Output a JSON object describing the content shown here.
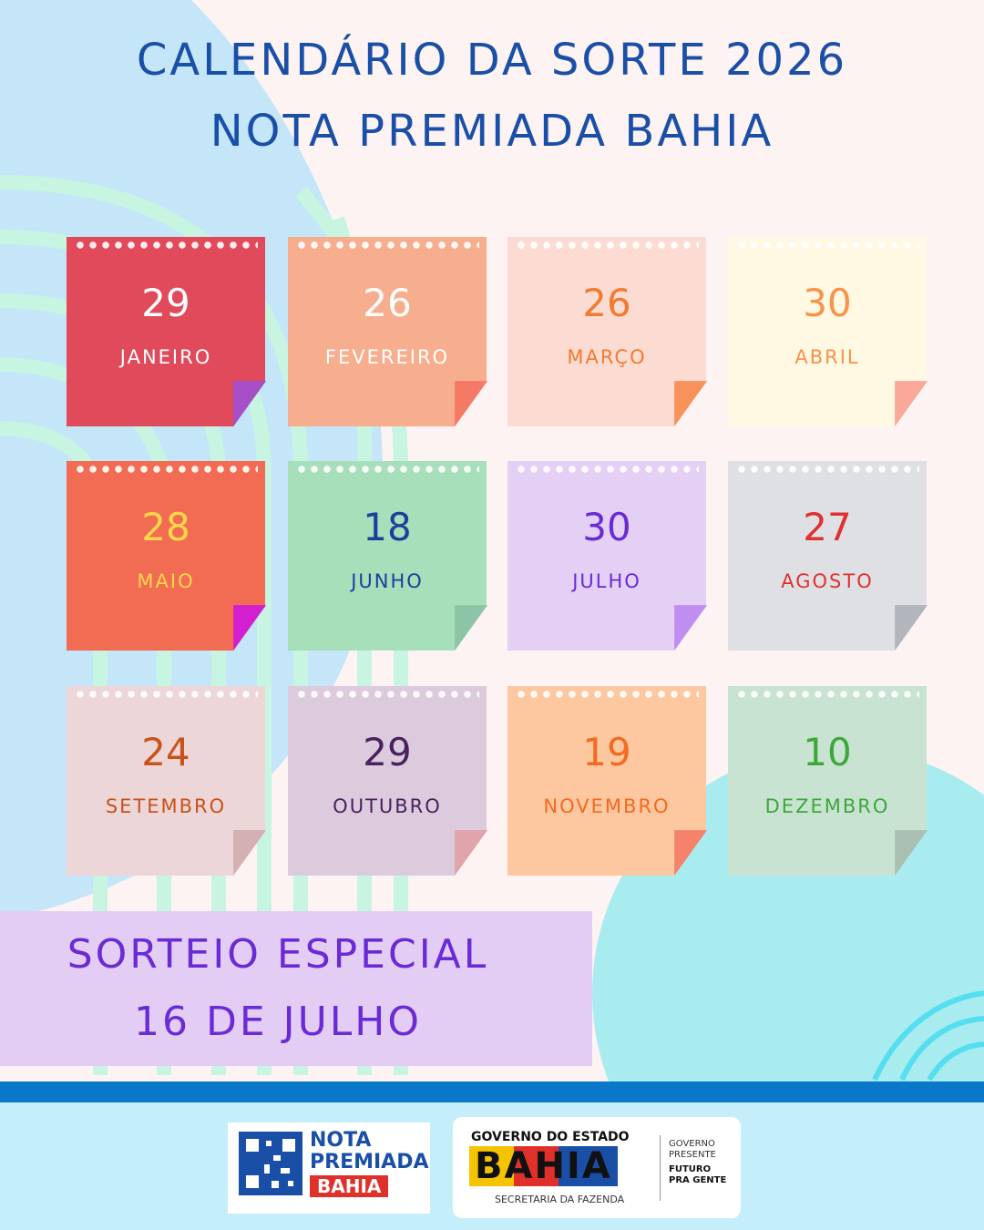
{
  "header": {
    "title_line1": "CALENDÁRIO DA SORTE 2026",
    "title_line2": "NOTA PREMIADA BAHIA"
  },
  "draws": [
    {
      "day": 29,
      "month": "JANEIRO"
    },
    {
      "day": 26,
      "month": "FEVEREIRO"
    },
    {
      "day": 26,
      "month": "MARÇO"
    },
    {
      "day": 30,
      "month": "ABRIL"
    },
    {
      "day": 28,
      "month": "MAIO"
    },
    {
      "day": 18,
      "month": "JUNHO"
    },
    {
      "day": 30,
      "month": "JULHO"
    },
    {
      "day": 27,
      "month": "AGOSTO"
    },
    {
      "day": 24,
      "month": "SETEMBRO"
    },
    {
      "day": 29,
      "month": "OUTUBRO"
    },
    {
      "day": 19,
      "month": "NOVEMBRO"
    },
    {
      "day": 10,
      "month": "DEZEMBRO"
    }
  ],
  "special": {
    "line1": "SORTEIO ESPECIAL",
    "line2": "16 DE JULHO"
  },
  "footer": {
    "nota_logo": {
      "line1": "NOTA",
      "line2": "PREMIADA",
      "line3": "BAHIA"
    },
    "gov_logo": {
      "top": "GOVERNO DO ESTADO",
      "state": "BAHIA",
      "department": "SECRETARIA DA FAZENDA",
      "slogan1": "GOVERNO",
      "slogan2": "PRESENTE",
      "slogan3": "FUTURO",
      "slogan4": "PRA GENTE"
    }
  }
}
